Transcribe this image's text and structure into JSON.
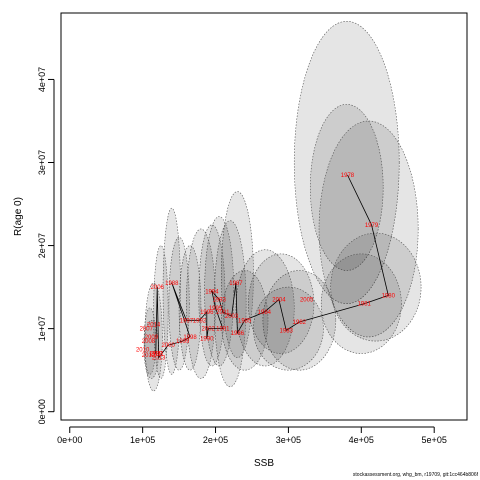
{
  "chart_data": {
    "type": "scatter",
    "xlabel": "SSB",
    "ylabel": "R(age 0)",
    "xlim": [
      -12000,
      545000
    ],
    "ylim": [
      -1000000,
      48000000
    ],
    "x_ticks": [
      {
        "value": 0,
        "label": "0e+00"
      },
      {
        "value": 100000,
        "label": "1e+05"
      },
      {
        "value": 200000,
        "label": "2e+05"
      },
      {
        "value": 300000,
        "label": "3e+05"
      },
      {
        "value": 400000,
        "label": "4e+05"
      },
      {
        "value": 500000,
        "label": "5e+05"
      }
    ],
    "y_ticks": [
      {
        "value": 0,
        "label": "0e+00"
      },
      {
        "value": 10000000,
        "label": "1e+07"
      },
      {
        "value": 20000000,
        "label": "2e+07"
      },
      {
        "value": 30000000,
        "label": "3e+07"
      },
      {
        "value": 40000000,
        "label": "4e+07"
      }
    ],
    "grid": false,
    "points": [
      {
        "year": "1978",
        "ssb": 381000,
        "r": 28500000
      },
      {
        "year": "1979",
        "ssb": 414000,
        "r": 22500000
      },
      {
        "year": "1980",
        "ssb": 437000,
        "r": 14000000
      },
      {
        "year": "1981",
        "ssb": 404000,
        "r": 13000000
      },
      {
        "year": "1982",
        "ssb": 315000,
        "r": 10800000
      },
      {
        "year": "1983",
        "ssb": 297000,
        "r": 9800000
      },
      {
        "year": "1984",
        "ssb": 267000,
        "r": 12000000
      },
      {
        "year": "1985",
        "ssb": 240000,
        "r": 11000000
      },
      {
        "year": "1986",
        "ssb": 230000,
        "r": 9500000
      },
      {
        "year": "1987",
        "ssb": 228000,
        "r": 15500000
      },
      {
        "year": "1988",
        "ssb": 140000,
        "r": 15500000
      },
      {
        "year": "1989",
        "ssb": 118000,
        "r": 7000000
      },
      {
        "year": "1990",
        "ssb": 188000,
        "r": 8800000
      },
      {
        "year": "1991",
        "ssb": 210000,
        "r": 10000000
      },
      {
        "year": "1992",
        "ssb": 178000,
        "r": 11000000
      },
      {
        "year": "1993",
        "ssb": 205000,
        "r": 13500000
      },
      {
        "year": "1994",
        "ssb": 195000,
        "r": 14500000
      },
      {
        "year": "1995",
        "ssb": 200000,
        "r": 12500000
      },
      {
        "year": "1996",
        "ssb": 188000,
        "r": 12000000
      },
      {
        "year": "1997",
        "ssb": 160000,
        "r": 11000000
      },
      {
        "year": "1998",
        "ssb": 165000,
        "r": 9000000
      },
      {
        "year": "1999",
        "ssb": 155000,
        "r": 8500000
      },
      {
        "year": "2000",
        "ssb": 135000,
        "r": 8000000
      },
      {
        "year": "2001",
        "ssb": 210000,
        "r": 12000000
      },
      {
        "year": "2002",
        "ssb": 190000,
        "r": 10000000
      },
      {
        "year": "2003",
        "ssb": 222000,
        "r": 11500000
      },
      {
        "year": "2004",
        "ssb": 287000,
        "r": 13500000
      },
      {
        "year": "2005",
        "ssb": 325000,
        "r": 13500000
      },
      {
        "year": "2006",
        "ssb": 120000,
        "r": 15000000
      },
      {
        "year": "2007",
        "ssb": 105000,
        "r": 10000000
      },
      {
        "year": "2008",
        "ssb": 108000,
        "r": 8500000
      },
      {
        "year": "2009",
        "ssb": 112000,
        "r": 9000000
      },
      {
        "year": "2010",
        "ssb": 100000,
        "r": 7500000
      },
      {
        "year": "2011",
        "ssb": 120000,
        "r": 7000000
      },
      {
        "year": "2012",
        "ssb": 108000,
        "r": 6800000
      },
      {
        "year": "2013",
        "ssb": 122000,
        "r": 6500000
      },
      {
        "year": "2014",
        "ssb": 115000,
        "r": 10500000
      }
    ],
    "path": [
      {
        "ssb": 381000,
        "r": 28500000
      },
      {
        "ssb": 414000,
        "r": 22500000
      },
      {
        "ssb": 437000,
        "r": 14000000
      },
      {
        "ssb": 404000,
        "r": 13000000
      },
      {
        "ssb": 315000,
        "r": 10800000
      },
      {
        "ssb": 297000,
        "r": 9800000
      },
      {
        "ssb": 287000,
        "r": 13500000
      },
      {
        "ssb": 267000,
        "r": 12000000
      },
      {
        "ssb": 240000,
        "r": 11000000
      },
      {
        "ssb": 230000,
        "r": 9500000
      },
      {
        "ssb": 228000,
        "r": 15500000
      },
      {
        "ssb": 222000,
        "r": 11500000
      },
      {
        "ssb": 210000,
        "r": 12000000
      },
      {
        "ssb": 205000,
        "r": 13500000
      },
      {
        "ssb": 195000,
        "r": 14500000
      },
      {
        "ssb": 200000,
        "r": 12500000
      },
      {
        "ssb": 210000,
        "r": 10000000
      },
      {
        "ssb": 190000,
        "r": 10000000
      },
      {
        "ssb": 188000,
        "r": 8800000
      },
      {
        "ssb": 188000,
        "r": 12000000
      },
      {
        "ssb": 178000,
        "r": 11000000
      },
      {
        "ssb": 160000,
        "r": 11000000
      },
      {
        "ssb": 140000,
        "r": 15500000
      },
      {
        "ssb": 165000,
        "r": 9000000
      },
      {
        "ssb": 155000,
        "r": 8500000
      },
      {
        "ssb": 135000,
        "r": 8000000
      },
      {
        "ssb": 122000,
        "r": 6500000
      },
      {
        "ssb": 120000,
        "r": 15000000
      },
      {
        "ssb": 118000,
        "r": 7000000
      }
    ],
    "ellipses": [
      {
        "ssb": 380000,
        "r": 30000000,
        "rx": 72000,
        "ry": 17000000
      },
      {
        "ssb": 380000,
        "r": 27000000,
        "rx": 50000,
        "ry": 10000000
      },
      {
        "ssb": 410000,
        "r": 22000000,
        "rx": 68000,
        "ry": 13000000
      },
      {
        "ssb": 420000,
        "r": 15000000,
        "rx": 62000,
        "ry": 6500000
      },
      {
        "ssb": 400000,
        "r": 13000000,
        "rx": 55000,
        "ry": 6000000
      },
      {
        "ssb": 315000,
        "r": 11000000,
        "rx": 50000,
        "ry": 6000000
      },
      {
        "ssb": 300000,
        "r": 10000000,
        "rx": 48000,
        "ry": 5000000
      },
      {
        "ssb": 290000,
        "r": 13000000,
        "rx": 45000,
        "ry": 6000000
      },
      {
        "ssb": 268000,
        "r": 12500000,
        "rx": 40000,
        "ry": 7000000
      },
      {
        "ssb": 240000,
        "r": 11000000,
        "rx": 32000,
        "ry": 6000000
      },
      {
        "ssb": 230000,
        "r": 16500000,
        "rx": 22000,
        "ry": 10000000
      },
      {
        "ssb": 220000,
        "r": 13000000,
        "rx": 22000,
        "ry": 10000000
      },
      {
        "ssb": 205000,
        "r": 14500000,
        "rx": 20000,
        "ry": 9000000
      },
      {
        "ssb": 195000,
        "r": 14000000,
        "rx": 18000,
        "ry": 8500000
      },
      {
        "ssb": 180000,
        "r": 13000000,
        "rx": 20000,
        "ry": 9000000
      },
      {
        "ssb": 165000,
        "r": 12500000,
        "rx": 15000,
        "ry": 7500000
      },
      {
        "ssb": 150000,
        "r": 13000000,
        "rx": 14000,
        "ry": 8000000
      },
      {
        "ssb": 140000,
        "r": 14500000,
        "rx": 12000,
        "ry": 10000000
      },
      {
        "ssb": 125000,
        "r": 12000000,
        "rx": 10000,
        "ry": 8000000
      },
      {
        "ssb": 115000,
        "r": 9000000,
        "rx": 12000,
        "ry": 6500000
      },
      {
        "ssb": 112000,
        "r": 7500000,
        "rx": 10000,
        "ry": 3500000
      },
      {
        "ssb": 110000,
        "r": 8500000,
        "rx": 8000,
        "ry": 4000000
      }
    ]
  },
  "caption": "stockassessment.org, whg_bm, r19709, git:1cc464b806f"
}
